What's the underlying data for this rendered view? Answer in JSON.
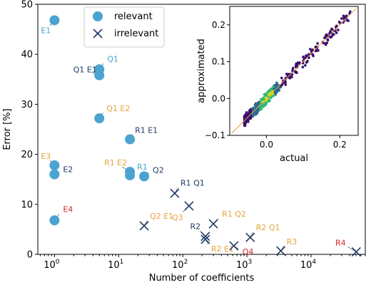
{
  "chart_data": [
    {
      "type": "scatter",
      "title": "",
      "xlabel": "Number of coefficients",
      "ylabel": "Error [%]",
      "xscale": "log",
      "xlim": [
        0.55,
        70000
      ],
      "ylim": [
        0,
        50
      ],
      "xticks": [
        {
          "value": 1,
          "base": "10",
          "exp": "0"
        },
        {
          "value": 10,
          "base": "10",
          "exp": "1"
        },
        {
          "value": 100,
          "base": "10",
          "exp": "2"
        },
        {
          "value": 1000,
          "base": "10",
          "exp": "3"
        },
        {
          "value": 10000,
          "base": "10",
          "exp": "4"
        }
      ],
      "yticks": [
        0,
        10,
        20,
        30,
        40,
        50
      ],
      "legend": {
        "placement": "top-center",
        "entries": [
          {
            "label": "relevant",
            "marker": "circle",
            "color": "#4aa3d1"
          },
          {
            "label": "irrelevant",
            "marker": "x",
            "color": "#1f3a66"
          }
        ]
      },
      "series": [
        {
          "name": "relevant",
          "marker": "circle",
          "color": "#4aa3d1",
          "points": [
            {
              "x": 1,
              "y": 46.8,
              "label": "E1",
              "label_color": "#4aa3d1"
            },
            {
              "x": 5,
              "y": 37.0,
              "label": "Q1",
              "label_color": "#4aa3d1"
            },
            {
              "x": 5,
              "y": 35.8,
              "label": "Q1 E1",
              "label_color": "#1f3a66"
            },
            {
              "x": 5,
              "y": 27.2,
              "label": "Q1 E2",
              "label_color": "#e8a33b"
            },
            {
              "x": 15,
              "y": 23.0,
              "label": "R1 E1",
              "label_color": "#1f3a66"
            },
            {
              "x": 1,
              "y": 17.8,
              "label": "E3",
              "label_color": "#e8a33b"
            },
            {
              "x": 1,
              "y": 16.0,
              "label": "E2",
              "label_color": "#1f3a66"
            },
            {
              "x": 15,
              "y": 16.5,
              "label": "R1 E2",
              "label_color": "#e8a33b"
            },
            {
              "x": 15,
              "y": 15.8,
              "label": "R1",
              "label_color": "#4aa3d1"
            },
            {
              "x": 25,
              "y": 15.6,
              "label": "Q2",
              "label_color": "#1f3a66"
            },
            {
              "x": 1,
              "y": 6.8,
              "label": "E4",
              "label_color": "#d62728"
            }
          ]
        },
        {
          "name": "irrelevant",
          "marker": "x",
          "color": "#1f3a66",
          "points": [
            {
              "x": 75,
              "y": 12.2,
              "label": "R1 Q1",
              "label_color": "#1f3a66"
            },
            {
              "x": 125,
              "y": 9.7,
              "label": "Q3",
              "label_color": "#e8a33b"
            },
            {
              "x": 25,
              "y": 5.7,
              "label": "Q2 E1",
              "label_color": "#e8a33b"
            },
            {
              "x": 300,
              "y": 6.1,
              "label": "R1 Q2",
              "label_color": "#e8a33b"
            },
            {
              "x": 225,
              "y": 3.6,
              "label": "R2",
              "label_color": "#1f3a66"
            },
            {
              "x": 225,
              "y": 3.0,
              "label": "R2 E1",
              "label_color": "#e8a33b"
            },
            {
              "x": 1125,
              "y": 3.4,
              "label": "R2 Q1",
              "label_color": "#e8a33b"
            },
            {
              "x": 625,
              "y": 1.7,
              "label": "Q4",
              "label_color": "#d62728"
            },
            {
              "x": 3375,
              "y": 0.7,
              "label": "R3",
              "label_color": "#e8a33b"
            },
            {
              "x": 50625,
              "y": 0.5,
              "label": "R4",
              "label_color": "#d62728"
            }
          ]
        }
      ]
    },
    {
      "type": "scatter",
      "title": "",
      "xlabel": "actual",
      "ylabel": "approximated",
      "xlim": [
        -0.1,
        0.25
      ],
      "ylim": [
        -0.1,
        0.25
      ],
      "xticks": [
        "0.0",
        "0.2"
      ],
      "yticks": [
        "−0.1",
        "0.0",
        "0.1",
        "0.2"
      ],
      "reference_line": {
        "from": [
          -0.095,
          -0.095
        ],
        "to": [
          0.245,
          0.245
        ],
        "color": "#e8a33b"
      },
      "density_colors": [
        "#3b0f70",
        "#31688e",
        "#35b779",
        "#d8e219"
      ],
      "points_summary": "dense cloud along the diagonal"
    }
  ]
}
